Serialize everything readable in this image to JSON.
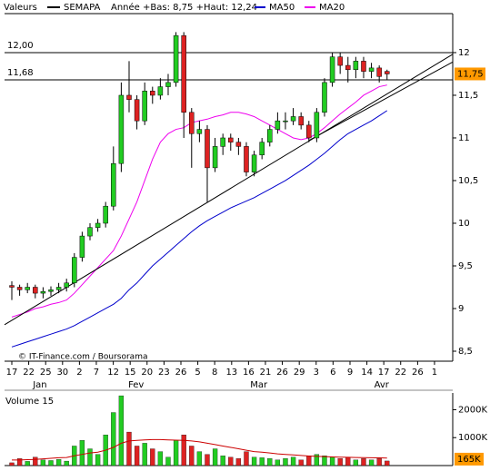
{
  "chart_data": {
    "type": "candlestick",
    "legend_label": "Valeurs",
    "name": "SEMAPA",
    "year_range": "Année +Bas: 8,75 +Haut: 12,24",
    "source": "© IT-Finance.com / Boursorama",
    "up_color": "#22cc22",
    "down_color": "#dd2222",
    "open": [
      9.27,
      9.25,
      9.22,
      9.25,
      9.18,
      9.2,
      9.22,
      9.25,
      9.3,
      9.6,
      9.85,
      9.95,
      10.0,
      10.2,
      10.7,
      11.5,
      11.45,
      11.2,
      11.55,
      11.5,
      11.6,
      11.65,
      12.2,
      11.3,
      11.05,
      11.1,
      10.65,
      10.9,
      11.0,
      10.95,
      10.9,
      10.6,
      10.8,
      10.95,
      11.1,
      11.2,
      11.2,
      11.25,
      11.15,
      11.0,
      11.3,
      11.65,
      11.95,
      11.85,
      11.8,
      11.9,
      11.78,
      11.82,
      11.78
    ],
    "high": [
      9.32,
      9.28,
      9.3,
      9.28,
      9.25,
      9.26,
      9.3,
      9.35,
      9.65,
      9.9,
      10.0,
      10.05,
      10.25,
      10.9,
      11.65,
      11.9,
      11.5,
      11.65,
      11.6,
      11.7,
      11.75,
      12.24,
      12.24,
      11.35,
      11.2,
      11.15,
      11.0,
      11.05,
      11.05,
      11.0,
      10.95,
      10.85,
      11.0,
      11.15,
      11.3,
      11.3,
      11.35,
      11.3,
      11.2,
      11.35,
      11.7,
      12.0,
      12.0,
      11.95,
      11.95,
      11.95,
      11.88,
      11.85,
      11.8
    ],
    "low": [
      9.1,
      9.15,
      9.18,
      9.12,
      9.12,
      9.15,
      9.18,
      9.2,
      9.25,
      9.55,
      9.8,
      9.9,
      9.95,
      10.15,
      10.6,
      11.3,
      11.1,
      11.15,
      11.4,
      11.45,
      11.5,
      11.6,
      11.0,
      10.65,
      10.95,
      10.25,
      10.6,
      10.8,
      10.85,
      10.8,
      10.55,
      10.55,
      10.75,
      10.9,
      11.05,
      11.1,
      11.15,
      11.1,
      10.95,
      10.95,
      11.25,
      11.6,
      11.75,
      11.65,
      11.7,
      11.7,
      11.7,
      11.65,
      11.68
    ],
    "close": [
      9.25,
      9.22,
      9.25,
      9.18,
      9.2,
      9.22,
      9.25,
      9.3,
      9.6,
      9.85,
      9.95,
      10.0,
      10.2,
      10.7,
      11.5,
      11.45,
      11.2,
      11.55,
      11.5,
      11.6,
      11.65,
      12.2,
      11.3,
      11.05,
      11.1,
      10.65,
      10.9,
      11.0,
      10.95,
      10.9,
      10.6,
      10.8,
      10.95,
      11.1,
      11.2,
      11.2,
      11.25,
      11.15,
      11.0,
      11.3,
      11.65,
      11.95,
      11.85,
      11.8,
      11.9,
      11.78,
      11.82,
      11.72,
      11.75
    ],
    "series": [
      {
        "name": "MA50",
        "color": "#0000cc",
        "values": [
          8.55,
          8.58,
          8.61,
          8.64,
          8.67,
          8.7,
          8.73,
          8.76,
          8.8,
          8.85,
          8.9,
          8.95,
          9.0,
          9.05,
          9.12,
          9.22,
          9.3,
          9.4,
          9.5,
          9.58,
          9.66,
          9.74,
          9.82,
          9.9,
          9.97,
          10.03,
          10.08,
          10.13,
          10.18,
          10.22,
          10.26,
          10.3,
          10.35,
          10.4,
          10.45,
          10.5,
          10.56,
          10.62,
          10.68,
          10.75,
          10.82,
          10.9,
          10.98,
          11.05,
          11.1,
          11.15,
          11.2,
          11.26,
          11.32
        ]
      },
      {
        "name": "MA20",
        "color": "#ee00ee",
        "values": [
          8.9,
          8.93,
          8.96,
          9.0,
          9.02,
          9.05,
          9.07,
          9.1,
          9.18,
          9.28,
          9.38,
          9.48,
          9.58,
          9.68,
          9.85,
          10.05,
          10.25,
          10.5,
          10.75,
          10.95,
          11.05,
          11.1,
          11.12,
          11.18,
          11.2,
          11.22,
          11.25,
          11.27,
          11.3,
          11.3,
          11.28,
          11.25,
          11.2,
          11.15,
          11.1,
          11.05,
          11.0,
          10.98,
          11.0,
          11.05,
          11.12,
          11.2,
          11.28,
          11.35,
          11.42,
          11.5,
          11.55,
          11.6,
          11.62
        ]
      }
    ],
    "trendlines": [
      {
        "x": [
          -0.93,
          56.4
        ],
        "y": [
          8.81,
          11.98
        ]
      },
      {
        "x": [
          38.0,
          56.4
        ],
        "y": [
          10.97,
          11.89
        ]
      }
    ],
    "levels": [
      {
        "value": 12,
        "label": "12,00"
      },
      {
        "value": 11.68,
        "label": "11,68"
      }
    ],
    "last_price": {
      "value": 11.75,
      "label": "11,75"
    },
    "xlim": [
      -0.93,
      56.4
    ],
    "ylim": [
      8.383,
      12.457
    ],
    "yticks": [
      {
        "value": 8.5,
        "label": "8,5"
      },
      9,
      {
        "value": 9.5,
        "label": "9,5"
      },
      10,
      {
        "value": 10.5,
        "label": "10,5"
      },
      11,
      {
        "value": 11.5,
        "label": "11,5"
      },
      12
    ],
    "xticks": [
      {
        "value": 0,
        "label": "17"
      },
      {
        "value": 2.16,
        "label": "22"
      },
      {
        "value": 4.33,
        "label": "25"
      },
      {
        "value": 6.49,
        "label": "30"
      },
      {
        "value": 8.65,
        "label": "2"
      },
      {
        "value": 10.81,
        "label": "7"
      },
      {
        "value": 12.98,
        "label": "12"
      },
      {
        "value": 15.14,
        "label": "15"
      },
      {
        "value": 17.3,
        "label": "20"
      },
      {
        "value": 19.47,
        "label": "23"
      },
      {
        "value": 21.63,
        "label": "26"
      },
      {
        "value": 23.79,
        "label": "5"
      },
      {
        "value": 25.95,
        "label": "8"
      },
      {
        "value": 28.12,
        "label": "13"
      },
      {
        "value": 30.28,
        "label": "16"
      },
      {
        "value": 32.44,
        "label": "21"
      },
      {
        "value": 34.6,
        "label": "26"
      },
      {
        "value": 36.77,
        "label": "29"
      },
      {
        "value": 38.93,
        "label": "3"
      },
      {
        "value": 41.09,
        "label": "6"
      },
      {
        "value": 43.26,
        "label": "9"
      },
      {
        "value": 45.42,
        "label": "14"
      },
      {
        "value": 47.58,
        "label": "17"
      },
      {
        "value": 49.74,
        "label": "22"
      },
      {
        "value": 51.91,
        "label": "26"
      },
      {
        "value": 54.07,
        "label": "1"
      }
    ],
    "months": [
      {
        "value": 3.6,
        "label": "Jan"
      },
      {
        "value": 15.9,
        "label": "Fev"
      },
      {
        "value": 31.6,
        "label": "Mar"
      },
      {
        "value": 47.3,
        "label": "Avr"
      }
    ],
    "volume": {
      "title": "Volume 15",
      "values": [
        100,
        250,
        150,
        300,
        200,
        180,
        220,
        160,
        700,
        900,
        600,
        400,
        1100,
        1900,
        2500,
        1200,
        700,
        800,
        600,
        500,
        300,
        900,
        1100,
        700,
        500,
        400,
        600,
        350,
        300,
        250,
        500,
        300,
        280,
        250,
        200,
        250,
        300,
        200,
        350,
        400,
        350,
        300,
        250,
        300,
        200,
        250,
        200,
        250,
        165
      ],
      "ma": [
        200,
        200,
        210,
        220,
        240,
        260,
        280,
        290,
        350,
        400,
        450,
        480,
        550,
        650,
        800,
        880,
        900,
        920,
        930,
        930,
        920,
        910,
        900,
        880,
        850,
        800,
        750,
        700,
        650,
        600,
        550,
        500,
        480,
        450,
        420,
        400,
        380,
        360,
        340,
        330,
        320,
        310,
        300,
        295,
        290,
        285,
        280,
        275,
        270
      ],
      "ma_color": "#cc0000",
      "ylim": [
        0,
        2600
      ],
      "yticks": [
        {
          "value": 1000,
          "label": "1000K"
        },
        {
          "value": 2000,
          "label": "2000K"
        }
      ],
      "last": {
        "value": 165,
        "label": "165K"
      }
    }
  }
}
